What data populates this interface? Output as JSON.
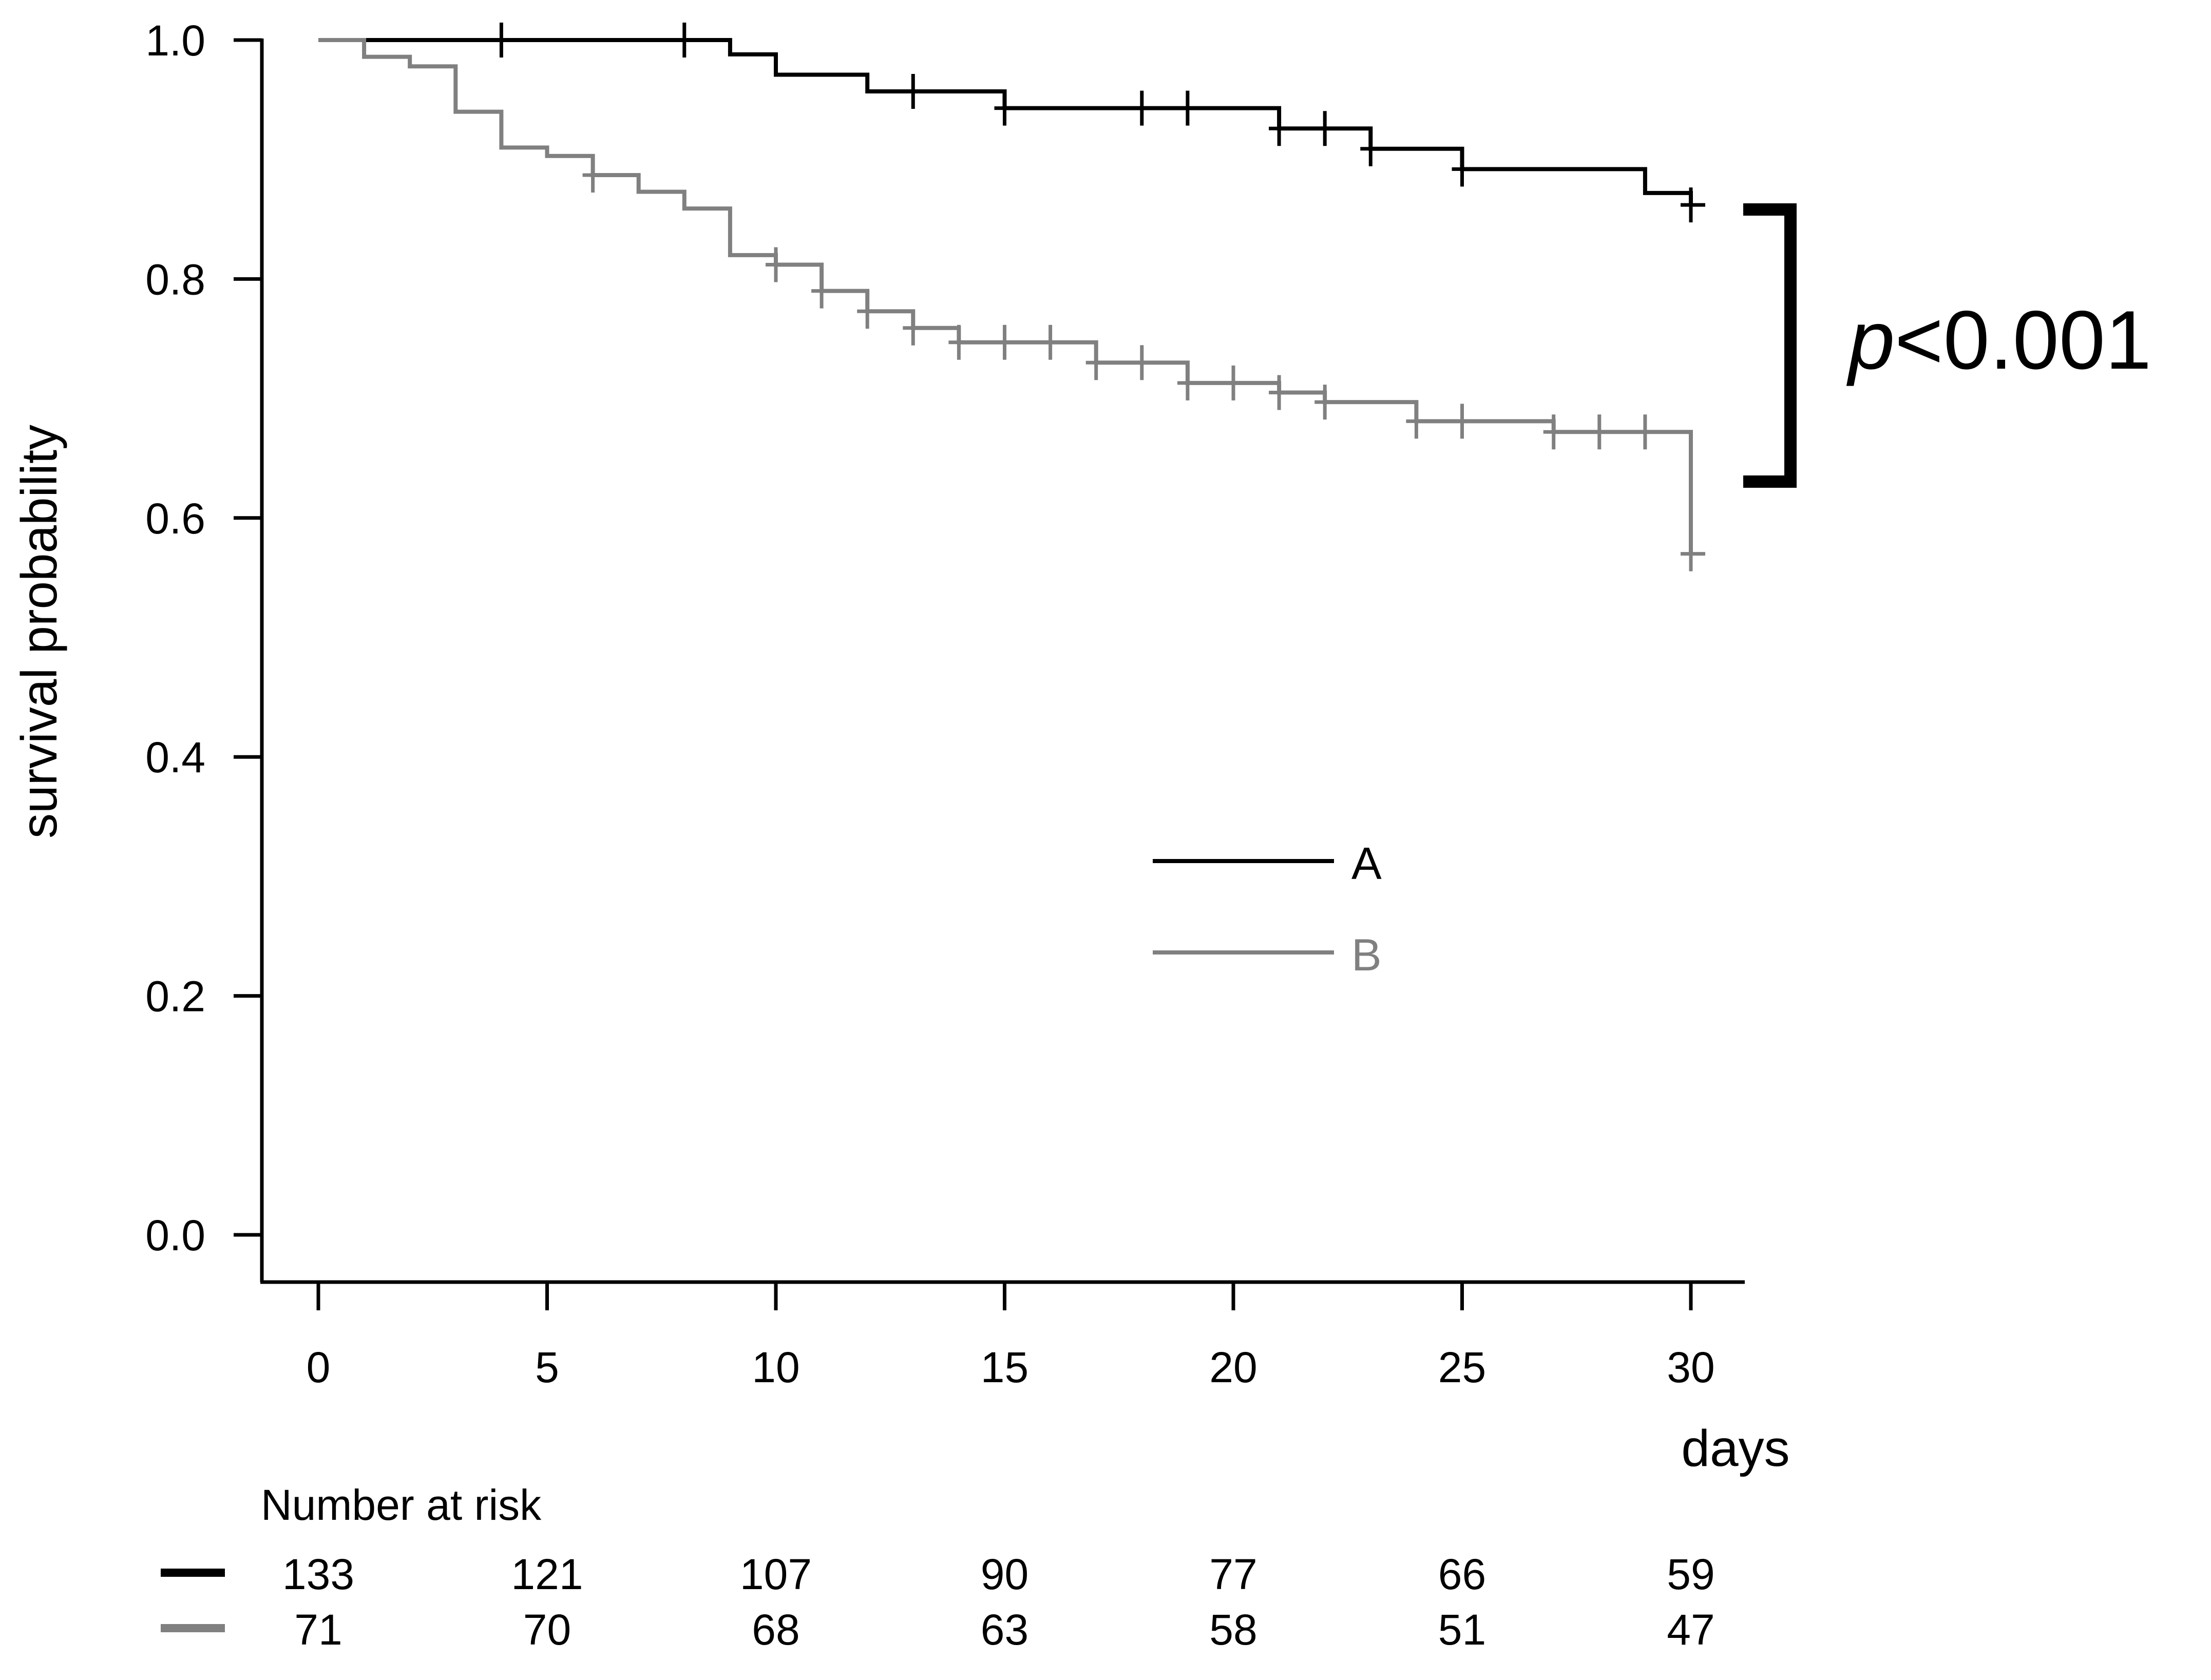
{
  "chart_data": {
    "type": "line",
    "subtype": "kaplan-meier",
    "xlabel": "days",
    "ylabel": "survival probability",
    "xlim": [
      -1.2,
      31.2
    ],
    "ylim": [
      -0.04,
      1.0
    ],
    "xticks": [
      0,
      5,
      10,
      15,
      20,
      25,
      30
    ],
    "xtick_labels": [
      "0",
      "5",
      "10",
      "15",
      "20",
      "25",
      "30"
    ],
    "yticks": [
      0.0,
      0.2,
      0.4,
      0.6,
      0.8,
      1.0
    ],
    "ytick_labels": [
      "0.0",
      "0.2",
      "0.4",
      "0.6",
      "0.8",
      "1.0"
    ],
    "grid": false,
    "legend_position": "center",
    "annotation": {
      "p_symbol": "p",
      "p_rest": "<0.001"
    },
    "series": [
      {
        "name": "A",
        "color": "#000000",
        "steps": [
          [
            0,
            1.0
          ],
          [
            9,
            0.988
          ],
          [
            10,
            0.971
          ],
          [
            12,
            0.957
          ],
          [
            15,
            0.943
          ],
          [
            21,
            0.926
          ],
          [
            23,
            0.909
          ],
          [
            25,
            0.892
          ],
          [
            29,
            0.872
          ],
          [
            30,
            0.862
          ]
        ],
        "end_x": 30,
        "censor_times": [
          4,
          8,
          13,
          15,
          18,
          19,
          21,
          22,
          23,
          25,
          30
        ]
      },
      {
        "name": "B",
        "color": "#808080",
        "steps": [
          [
            0,
            1.0
          ],
          [
            1,
            0.986
          ],
          [
            2,
            0.978
          ],
          [
            3,
            0.94
          ],
          [
            4,
            0.91
          ],
          [
            5,
            0.903
          ],
          [
            6,
            0.887
          ],
          [
            7,
            0.873
          ],
          [
            8,
            0.859
          ],
          [
            9,
            0.82
          ],
          [
            10,
            0.812
          ],
          [
            11,
            0.79
          ],
          [
            12,
            0.773
          ],
          [
            13,
            0.759
          ],
          [
            14,
            0.747
          ],
          [
            17,
            0.73
          ],
          [
            19,
            0.713
          ],
          [
            21,
            0.705
          ],
          [
            22,
            0.697
          ],
          [
            24,
            0.681
          ],
          [
            27,
            0.672
          ],
          [
            30,
            0.57
          ]
        ],
        "end_x": 30,
        "censor_times": [
          6,
          10,
          11,
          12,
          13,
          14,
          15,
          16,
          17,
          18,
          19,
          20,
          21,
          22,
          24,
          25,
          27,
          28,
          29,
          30
        ]
      }
    ],
    "risk_table": {
      "title": "Number at risk",
      "times": [
        0,
        5,
        10,
        15,
        20,
        25,
        30
      ],
      "rows": [
        {
          "group": "A",
          "color": "#000000",
          "counts": [
            "133",
            "121",
            "107",
            "90",
            "77",
            "66",
            "59"
          ]
        },
        {
          "group": "B",
          "color": "#808080",
          "counts": [
            "71",
            "70",
            "68",
            "63",
            "58",
            "51",
            "47"
          ]
        }
      ]
    }
  }
}
